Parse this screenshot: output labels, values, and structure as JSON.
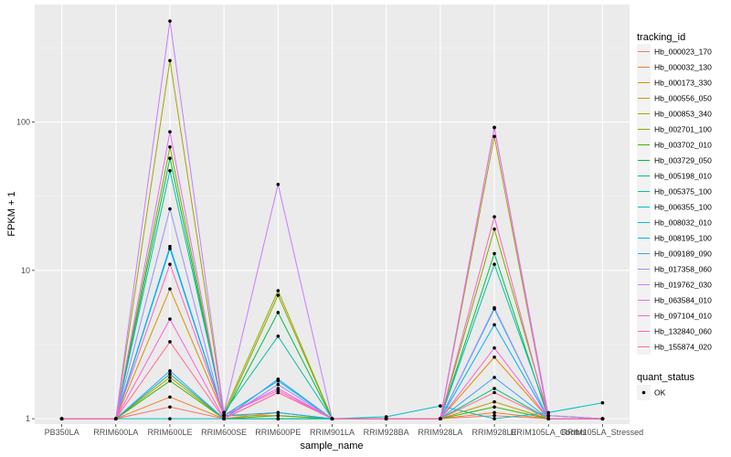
{
  "chart_data": {
    "type": "line",
    "xlabel": "sample_name",
    "ylabel": "FPKM + 1",
    "y_scale": "log10",
    "ylim": [
      0.92,
      620
    ],
    "y_ticks": [
      1,
      10,
      100
    ],
    "y_tick_labels": [
      "1",
      "10",
      "100"
    ],
    "grid": true,
    "legend_position": "right",
    "categories": [
      "PB350LA",
      "RRIM600LA",
      "RRIM600LE",
      "RRIM600SE",
      "RRIM600PE",
      "RRIM901LA",
      "RRIM928BA",
      "RRIM928LA",
      "RRIM928LE",
      "RRIM105LA_Control",
      "RRIM105LA_Stressed"
    ],
    "legend_title": "tracking_id",
    "series": [
      {
        "name": "Hb_000023_170",
        "color": "#F8766D",
        "values": [
          1.0,
          1.0,
          1.2,
          1.0,
          1.0,
          1.0,
          1.0,
          1.0,
          1.05,
          1.0,
          1.0
        ]
      },
      {
        "name": "Hb_000032_130",
        "color": "#EA8331",
        "values": [
          1.0,
          1.0,
          1.4,
          1.0,
          1.1,
          1.0,
          1.0,
          1.0,
          1.1,
          1.0,
          1.0
        ]
      },
      {
        "name": "Hb_000173_330",
        "color": "#D89000",
        "values": [
          1.0,
          1.0,
          7.5,
          1.05,
          1.05,
          1.0,
          1.0,
          1.0,
          2.6,
          1.0,
          1.0
        ]
      },
      {
        "name": "Hb_000556_050",
        "color": "#C09B00",
        "values": [
          1.0,
          1.0,
          1.9,
          1.0,
          1.0,
          1.0,
          1.0,
          1.0,
          1.3,
          1.0,
          1.0
        ]
      },
      {
        "name": "Hb_000853_340",
        "color": "#A3A500",
        "values": [
          1.0,
          1.0,
          260,
          1.1,
          7.3,
          1.0,
          1.0,
          1.0,
          80,
          1.0,
          1.0
        ]
      },
      {
        "name": "Hb_002701_100",
        "color": "#7CAE00",
        "values": [
          1.0,
          1.0,
          68,
          1.05,
          6.8,
          1.0,
          1.0,
          1.0,
          19,
          1.05,
          1.0
        ]
      },
      {
        "name": "Hb_003702_010",
        "color": "#39B600",
        "values": [
          1.0,
          1.0,
          1.8,
          1.0,
          1.05,
          1.0,
          1.0,
          1.0,
          1.2,
          1.0,
          1.0
        ]
      },
      {
        "name": "Hb_003729_050",
        "color": "#00BB4E",
        "values": [
          1.0,
          1.0,
          57,
          1.05,
          5.2,
          1.0,
          1.0,
          1.0,
          13,
          1.0,
          1.0
        ]
      },
      {
        "name": "Hb_005198_010",
        "color": "#00BF7D",
        "values": [
          1.0,
          1.0,
          2.0,
          1.0,
          1.0,
          1.0,
          1.0,
          1.0,
          1.6,
          1.0,
          1.0
        ]
      },
      {
        "name": "Hb_005375_100",
        "color": "#00C1A3",
        "values": [
          1.0,
          1.0,
          47,
          1.1,
          3.6,
          1.0,
          1.0,
          1.0,
          11,
          1.05,
          1.0
        ]
      },
      {
        "name": "Hb_006355_100",
        "color": "#00BFC4",
        "values": [
          1.0,
          1.0,
          1.0,
          1.0,
          1.0,
          1.0,
          1.03,
          1.22,
          1.0,
          1.1,
          1.28
        ]
      },
      {
        "name": "Hb_008032_010",
        "color": "#00BAE0",
        "values": [
          1.0,
          1.0,
          14,
          1.05,
          1.8,
          1.0,
          1.0,
          1.0,
          5.5,
          1.0,
          1.0
        ]
      },
      {
        "name": "Hb_008195_100",
        "color": "#00B0F6",
        "values": [
          1.0,
          1.0,
          14.5,
          1.05,
          1.1,
          1.0,
          1.0,
          1.0,
          4.3,
          1.0,
          1.0
        ]
      },
      {
        "name": "Hb_009189_090",
        "color": "#35A2FF",
        "values": [
          1.0,
          1.0,
          2.1,
          1.0,
          1.85,
          1.0,
          1.0,
          1.0,
          1.9,
          1.0,
          1.0
        ]
      },
      {
        "name": "Hb_017358_060",
        "color": "#9590FF",
        "values": [
          1.0,
          1.0,
          26,
          1.0,
          1.7,
          1.0,
          1.0,
          1.0,
          5.6,
          1.0,
          1.0
        ]
      },
      {
        "name": "Hb_019762_030",
        "color": "#C77CFF",
        "values": [
          1.0,
          1.0,
          480,
          1.1,
          38,
          1.0,
          1.0,
          1.0,
          92,
          1.05,
          1.0
        ]
      },
      {
        "name": "Hb_063584_010",
        "color": "#E76BF3",
        "values": [
          1.0,
          1.0,
          86,
          1.05,
          1.6,
          1.0,
          1.0,
          1.0,
          92,
          1.0,
          1.0
        ]
      },
      {
        "name": "Hb_097104_010",
        "color": "#FA62DB",
        "values": [
          1.0,
          1.0,
          4.7,
          1.0,
          1.5,
          1.0,
          1.0,
          1.0,
          3.0,
          1.0,
          1.0
        ]
      },
      {
        "name": "Hb_132840_060",
        "color": "#FF62BC",
        "values": [
          1.0,
          1.0,
          11,
          1.05,
          1.55,
          1.0,
          1.0,
          1.0,
          23,
          1.0,
          1.0
        ]
      },
      {
        "name": "Hb_155874_020",
        "color": "#FF6C91",
        "values": [
          1.0,
          1.0,
          3.3,
          1.0,
          1.5,
          1.0,
          1.0,
          1.0,
          1.5,
          1.0,
          1.0
        ]
      }
    ],
    "shape_legend_title": "quant_status",
    "shape_legend_items": [
      "OK"
    ],
    "colors": {
      "panel_background": "#EBEBEB",
      "grid_major": "#FFFFFF",
      "point": "#000000"
    }
  }
}
